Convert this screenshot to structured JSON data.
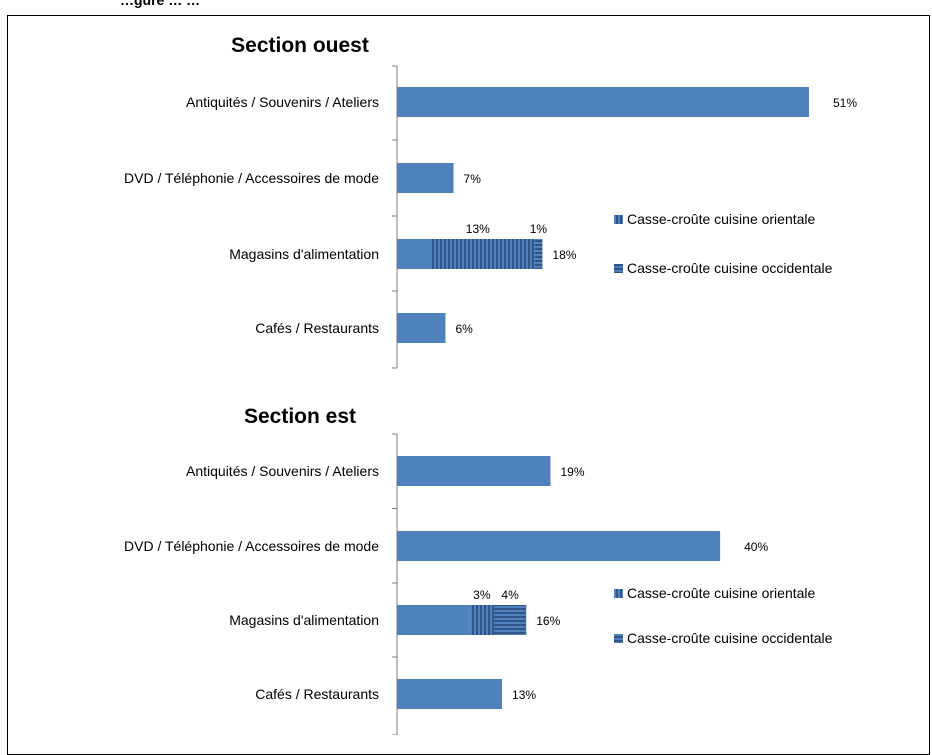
{
  "page_header": "…gure … …",
  "colors": {
    "bar": "#4f81bd",
    "pattern_line": "#1f3864",
    "axis": "#7f7f7f"
  },
  "chart_data": [
    {
      "type": "bar",
      "orientation": "horizontal",
      "title": "Section ouest",
      "categories": [
        "Antiquités / Souvenirs / Ateliers",
        "DVD / Téléphonie / Accessoires de mode",
        "Magasins d'alimentation",
        "Cafés / Restaurants"
      ],
      "values": [
        51,
        7,
        18,
        6
      ],
      "value_labels": [
        "51%",
        "7%",
        "18%",
        "6%"
      ],
      "unit": "%",
      "xlim": [
        0,
        60
      ],
      "grid": false,
      "sub_segments": {
        "category": "Magasins d'alimentation",
        "segments": [
          {
            "name": "Casse-croûte cuisine orientale",
            "value": 13,
            "label": "13%",
            "pattern": "vertical"
          },
          {
            "name": "Casse-croûte cuisine occidentale",
            "value": 1,
            "label": "1%",
            "pattern": "horizontal"
          }
        ]
      },
      "legend": [
        "Casse-croûte cuisine orientale",
        "Casse-croûte cuisine occidentale"
      ],
      "legend_placement": "right"
    },
    {
      "type": "bar",
      "orientation": "horizontal",
      "title": "Section est",
      "categories": [
        "Antiquités / Souvenirs / Ateliers",
        "DVD / Téléphonie / Accessoires de mode",
        "Magasins d'alimentation",
        "Cafés / Restaurants"
      ],
      "values": [
        19,
        40,
        16,
        13
      ],
      "value_labels": [
        "19%",
        "40%",
        "16%",
        "13%"
      ],
      "unit": "%",
      "xlim": [
        0,
        60
      ],
      "grid": false,
      "sub_segments": {
        "category": "Magasins d'alimentation",
        "segments": [
          {
            "name": "Casse-croûte cuisine orientale",
            "value": 3,
            "label": "3%",
            "pattern": "vertical"
          },
          {
            "name": "Casse-croûte cuisine occidentale",
            "value": 4,
            "label": "4%",
            "pattern": "horizontal"
          }
        ]
      },
      "legend": [
        "Casse-croûte cuisine orientale",
        "Casse-croûte cuisine occidentale"
      ],
      "legend_placement": "right"
    }
  ]
}
